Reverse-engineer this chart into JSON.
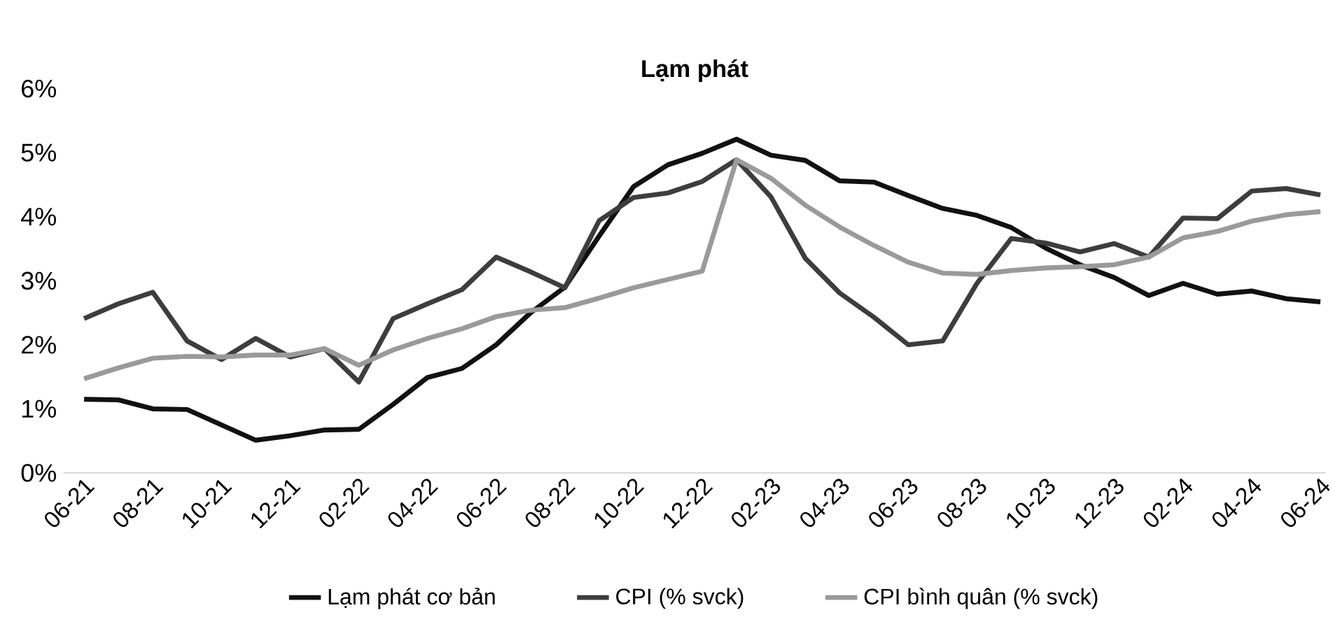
{
  "chart_data": {
    "type": "line",
    "title": "Lạm phát",
    "categories": [
      "06-21",
      null,
      "08-21",
      null,
      "10-21",
      null,
      "12-21",
      null,
      "02-22",
      null,
      "04-22",
      null,
      "06-22",
      null,
      "08-22",
      null,
      "10-22",
      null,
      "12-22",
      null,
      "02-23",
      null,
      "04-23",
      null,
      "06-23",
      null,
      "08-23",
      null,
      "10-23",
      null,
      "12-23",
      null,
      "02-24",
      null,
      "04-24",
      null,
      "06-24"
    ],
    "series": [
      {
        "name": "Lạm phát cơ bản",
        "color": "#111111",
        "values": [
          1.15,
          1.14,
          1.0,
          0.99,
          0.75,
          0.51,
          0.58,
          0.67,
          0.68,
          1.07,
          1.49,
          1.63,
          2.0,
          2.5,
          2.9,
          3.7,
          4.47,
          4.81,
          4.99,
          5.21,
          4.96,
          4.88,
          4.56,
          4.54,
          4.33,
          4.13,
          4.02,
          3.83,
          3.51,
          3.25,
          3.05,
          2.77,
          2.96,
          2.79,
          2.84,
          2.72,
          2.67
        ]
      },
      {
        "name": "CPI (% svck)",
        "color": "#3d3d3d",
        "values": [
          2.41,
          2.64,
          2.82,
          2.06,
          1.77,
          2.1,
          1.81,
          1.94,
          1.42,
          2.41,
          2.64,
          2.86,
          3.37,
          3.14,
          2.89,
          3.94,
          4.3,
          4.37,
          4.55,
          4.89,
          4.31,
          3.35,
          2.81,
          2.43,
          2.0,
          2.06,
          2.96,
          3.66,
          3.59,
          3.45,
          3.58,
          3.37,
          3.98,
          3.97,
          4.4,
          4.44,
          4.34
        ]
      },
      {
        "name": "CPI bình quân (% svck)",
        "color": "#9a9a9a",
        "values": [
          1.47,
          1.64,
          1.79,
          1.82,
          1.81,
          1.84,
          1.84,
          1.94,
          1.68,
          1.92,
          2.1,
          2.25,
          2.44,
          2.54,
          2.58,
          2.73,
          2.89,
          3.02,
          3.15,
          4.89,
          4.6,
          4.18,
          3.84,
          3.55,
          3.29,
          3.12,
          3.1,
          3.16,
          3.2,
          3.22,
          3.25,
          3.37,
          3.67,
          3.77,
          3.93,
          4.03,
          4.08
        ]
      }
    ],
    "ylim": [
      0,
      6
    ],
    "yticks": [
      {
        "value": 0,
        "label": "0%"
      },
      {
        "value": 1,
        "label": "1%"
      },
      {
        "value": 2,
        "label": "2%"
      },
      {
        "value": 3,
        "label": "3%"
      },
      {
        "value": 4,
        "label": "4%"
      },
      {
        "value": 5,
        "label": "5%"
      },
      {
        "value": 6,
        "label": "6%"
      }
    ],
    "grid": false,
    "legend": "bottom",
    "marker": "none",
    "line_style": "solid"
  }
}
